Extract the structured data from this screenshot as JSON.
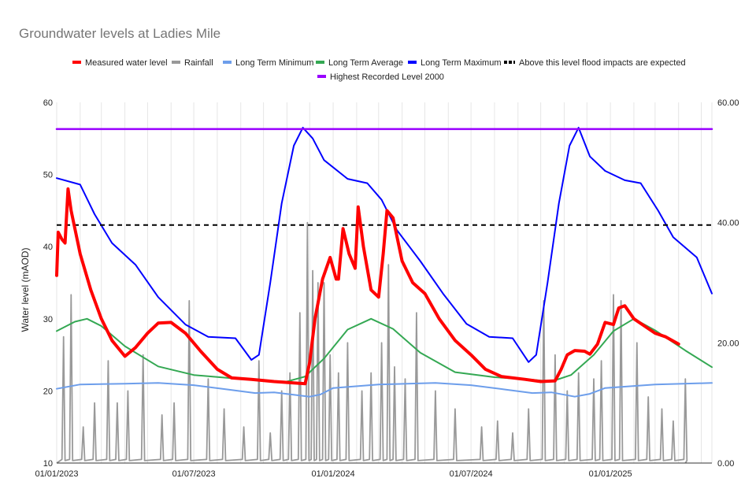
{
  "chart_data": {
    "type": "line",
    "title": "Groundwater levels at Ladies Mile",
    "ylabel": "Water level (mAOD)",
    "y2label": "",
    "ylim": [
      10,
      60
    ],
    "y2lim": [
      0,
      60
    ],
    "yticks": [
      "10",
      "20",
      "30",
      "40",
      "50",
      "60"
    ],
    "y2ticks": [
      "0.00",
      "20.00",
      "40.00",
      "60.00"
    ],
    "x_tick_labels": [
      "01/01/2023",
      "01/07/2023",
      "01/01/2024",
      "01/07/2024",
      "01/01/2025"
    ],
    "x_tick_dates": [
      "2023-01-01",
      "2023-07-01",
      "2024-01-01",
      "2024-07-01",
      "2025-01-01"
    ],
    "xlim": [
      "2023-01-01",
      "2025-05-15"
    ],
    "grid": "vertical",
    "legend_position": "top",
    "series": [
      {
        "name": "Measured water level",
        "color": "#ff0000",
        "axis": "left",
        "style": "solid",
        "width": 4,
        "points": [
          [
            "2023-01-01",
            36
          ],
          [
            "2023-01-03",
            42
          ],
          [
            "2023-01-08",
            41
          ],
          [
            "2023-01-12",
            40.5
          ],
          [
            "2023-01-16",
            48
          ],
          [
            "2023-01-20",
            45
          ],
          [
            "2023-02-01",
            39
          ],
          [
            "2023-02-15",
            34
          ],
          [
            "2023-03-01",
            30
          ],
          [
            "2023-03-15",
            27
          ],
          [
            "2023-04-01",
            24.8
          ],
          [
            "2023-04-15",
            26
          ],
          [
            "2023-05-01",
            28
          ],
          [
            "2023-05-15",
            29.4
          ],
          [
            "2023-06-01",
            29.5
          ],
          [
            "2023-06-20",
            28
          ],
          [
            "2023-07-10",
            25.5
          ],
          [
            "2023-08-01",
            23
          ],
          [
            "2023-08-20",
            21.8
          ],
          [
            "2023-09-15",
            21.6
          ],
          [
            "2023-10-15",
            21.3
          ],
          [
            "2023-11-10",
            21.1
          ],
          [
            "2023-11-25",
            21
          ],
          [
            "2023-12-01",
            24
          ],
          [
            "2023-12-08",
            30
          ],
          [
            "2023-12-18",
            35.5
          ],
          [
            "2023-12-28",
            38.5
          ],
          [
            "2024-01-05",
            35.5
          ],
          [
            "2024-01-08",
            35.5
          ],
          [
            "2024-01-14",
            42.5
          ],
          [
            "2024-01-22",
            39
          ],
          [
            "2024-01-30",
            37
          ],
          [
            "2024-02-03",
            45.5
          ],
          [
            "2024-02-10",
            40
          ],
          [
            "2024-02-20",
            34
          ],
          [
            "2024-03-01",
            33
          ],
          [
            "2024-03-07",
            39
          ],
          [
            "2024-03-12",
            45
          ],
          [
            "2024-03-20",
            44
          ],
          [
            "2024-04-01",
            38
          ],
          [
            "2024-04-15",
            35
          ],
          [
            "2024-05-01",
            33.5
          ],
          [
            "2024-05-20",
            30
          ],
          [
            "2024-06-10",
            27
          ],
          [
            "2024-07-01",
            25
          ],
          [
            "2024-07-20",
            23
          ],
          [
            "2024-08-10",
            22
          ],
          [
            "2024-09-10",
            21.6
          ],
          [
            "2024-10-01",
            21.3
          ],
          [
            "2024-10-20",
            21.4
          ],
          [
            "2024-10-28",
            23
          ],
          [
            "2024-11-05",
            25
          ],
          [
            "2024-11-15",
            25.6
          ],
          [
            "2024-11-28",
            25.5
          ],
          [
            "2024-12-05",
            25.1
          ],
          [
            "2024-12-15",
            26.5
          ],
          [
            "2024-12-25",
            29.5
          ],
          [
            "2025-01-05",
            29.2
          ],
          [
            "2025-01-12",
            31.5
          ],
          [
            "2025-01-20",
            31.8
          ],
          [
            "2025-02-01",
            30
          ],
          [
            "2025-02-15",
            29
          ],
          [
            "2025-03-01",
            28
          ],
          [
            "2025-03-15",
            27.5
          ],
          [
            "2025-04-01",
            26.5
          ]
        ]
      },
      {
        "name": "Rainfall",
        "color": "#999999",
        "axis": "right",
        "style": "solid",
        "width": 1.8,
        "peaks": [
          [
            "2023-01-10",
            21
          ],
          [
            "2023-01-20",
            28
          ],
          [
            "2023-02-05",
            6
          ],
          [
            "2023-02-20",
            10
          ],
          [
            "2023-03-10",
            17
          ],
          [
            "2023-03-22",
            10
          ],
          [
            "2023-04-05",
            12
          ],
          [
            "2023-04-25",
            18
          ],
          [
            "2023-05-20",
            8
          ],
          [
            "2023-06-05",
            10
          ],
          [
            "2023-06-25",
            27
          ],
          [
            "2023-07-20",
            14
          ],
          [
            "2023-08-10",
            9
          ],
          [
            "2023-09-05",
            6
          ],
          [
            "2023-09-25",
            17
          ],
          [
            "2023-10-10",
            5
          ],
          [
            "2023-10-25",
            12
          ],
          [
            "2023-11-05",
            15
          ],
          [
            "2023-11-18",
            25
          ],
          [
            "2023-11-28",
            40
          ],
          [
            "2023-12-05",
            32
          ],
          [
            "2023-12-12",
            30
          ],
          [
            "2023-12-20",
            30
          ],
          [
            "2023-12-28",
            18
          ],
          [
            "2024-01-08",
            15
          ],
          [
            "2024-01-20",
            20
          ],
          [
            "2024-02-08",
            12
          ],
          [
            "2024-02-20",
            15
          ],
          [
            "2024-03-05",
            20
          ],
          [
            "2024-03-14",
            33
          ],
          [
            "2024-03-22",
            16
          ],
          [
            "2024-04-05",
            14
          ],
          [
            "2024-04-20",
            25
          ],
          [
            "2024-05-15",
            12
          ],
          [
            "2024-06-10",
            9
          ],
          [
            "2024-07-15",
            6
          ],
          [
            "2024-08-05",
            7
          ],
          [
            "2024-08-25",
            5
          ],
          [
            "2024-09-15",
            9
          ],
          [
            "2024-10-05",
            27
          ],
          [
            "2024-10-20",
            18
          ],
          [
            "2024-11-05",
            12
          ],
          [
            "2024-11-20",
            15
          ],
          [
            "2024-12-10",
            14
          ],
          [
            "2024-12-20",
            17
          ],
          [
            "2025-01-05",
            28
          ],
          [
            "2025-01-15",
            27
          ],
          [
            "2025-02-05",
            20
          ],
          [
            "2025-02-20",
            11
          ],
          [
            "2025-03-10",
            9
          ],
          [
            "2025-03-25",
            7
          ],
          [
            "2025-04-10",
            14
          ]
        ]
      },
      {
        "name": "Long Term Minimum",
        "color": "#6d9eeb",
        "axis": "left",
        "style": "solid",
        "width": 2,
        "points": [
          [
            "2023-01-01",
            20.3
          ],
          [
            "2023-02-01",
            20.9
          ],
          [
            "2023-04-01",
            21
          ],
          [
            "2023-05-15",
            21.1
          ],
          [
            "2023-07-01",
            20.8
          ],
          [
            "2023-08-15",
            20.2
          ],
          [
            "2023-09-20",
            19.7
          ],
          [
            "2023-10-15",
            19.8
          ],
          [
            "2023-12-01",
            19.2
          ],
          [
            "2023-12-15",
            19.5
          ],
          [
            "2024-01-01",
            20.4
          ],
          [
            "2024-03-01",
            20.9
          ],
          [
            "2024-05-15",
            21.1
          ],
          [
            "2024-07-01",
            20.8
          ],
          [
            "2024-08-15",
            20.2
          ],
          [
            "2024-09-20",
            19.7
          ],
          [
            "2024-10-15",
            19.8
          ],
          [
            "2024-11-15",
            19.2
          ],
          [
            "2024-12-05",
            19.6
          ],
          [
            "2024-12-25",
            20.4
          ],
          [
            "2025-03-01",
            20.9
          ],
          [
            "2025-05-15",
            21.1
          ]
        ]
      },
      {
        "name": "Long Term Average",
        "color": "#34a853",
        "axis": "left",
        "style": "solid",
        "width": 2,
        "points": [
          [
            "2023-01-01",
            28.3
          ],
          [
            "2023-01-25",
            29.6
          ],
          [
            "2023-02-10",
            30
          ],
          [
            "2023-03-01",
            29
          ],
          [
            "2023-04-01",
            26.2
          ],
          [
            "2023-05-15",
            23.4
          ],
          [
            "2023-07-01",
            22.2
          ],
          [
            "2023-08-15",
            21.8
          ],
          [
            "2023-10-01",
            21.4
          ],
          [
            "2023-11-01",
            21.3
          ],
          [
            "2023-11-25",
            22
          ],
          [
            "2023-12-20",
            24.5
          ],
          [
            "2024-01-20",
            28.5
          ],
          [
            "2024-02-20",
            30
          ],
          [
            "2024-03-20",
            28.6
          ],
          [
            "2024-04-25",
            25.3
          ],
          [
            "2024-06-10",
            22.6
          ],
          [
            "2024-08-01",
            21.9
          ],
          [
            "2024-09-15",
            21.6
          ],
          [
            "2024-10-15",
            21.3
          ],
          [
            "2024-11-10",
            22.2
          ],
          [
            "2024-12-10",
            25
          ],
          [
            "2025-01-05",
            28.3
          ],
          [
            "2025-02-01",
            30
          ],
          [
            "2025-03-01",
            28.4
          ],
          [
            "2025-04-10",
            25.6
          ],
          [
            "2025-05-15",
            23.3
          ]
        ]
      },
      {
        "name": "Long Term Maximum",
        "color": "#0000ff",
        "axis": "left",
        "style": "solid",
        "width": 2,
        "points": [
          [
            "2023-01-01",
            49.5
          ],
          [
            "2023-02-01",
            48.6
          ],
          [
            "2023-02-20",
            44.5
          ],
          [
            "2023-03-15",
            40.5
          ],
          [
            "2023-04-15",
            37.5
          ],
          [
            "2023-05-15",
            33
          ],
          [
            "2023-06-20",
            29.2
          ],
          [
            "2023-07-20",
            27.5
          ],
          [
            "2023-08-25",
            27.3
          ],
          [
            "2023-09-15",
            24.3
          ],
          [
            "2023-09-25",
            25
          ],
          [
            "2023-10-10",
            35
          ],
          [
            "2023-10-25",
            46
          ],
          [
            "2023-11-10",
            54
          ],
          [
            "2023-11-22",
            56.5
          ],
          [
            "2023-12-05",
            55
          ],
          [
            "2023-12-20",
            52
          ],
          [
            "2024-01-20",
            49.4
          ],
          [
            "2024-02-15",
            48.8
          ],
          [
            "2024-03-05",
            46.5
          ],
          [
            "2024-03-25",
            42.3
          ],
          [
            "2024-04-25",
            38
          ],
          [
            "2024-05-25",
            33.5
          ],
          [
            "2024-06-25",
            29.3
          ],
          [
            "2024-07-25",
            27.5
          ],
          [
            "2024-08-25",
            27.3
          ],
          [
            "2024-09-15",
            24
          ],
          [
            "2024-09-25",
            25
          ],
          [
            "2024-10-10",
            35
          ],
          [
            "2024-10-25",
            46
          ],
          [
            "2024-11-08",
            54
          ],
          [
            "2024-11-20",
            56.5
          ],
          [
            "2024-12-05",
            52.5
          ],
          [
            "2024-12-25",
            50.5
          ],
          [
            "2025-01-20",
            49.2
          ],
          [
            "2025-02-10",
            48.8
          ],
          [
            "2025-03-05",
            45
          ],
          [
            "2025-03-25",
            41.3
          ],
          [
            "2025-04-25",
            38.5
          ],
          [
            "2025-05-15",
            33.5
          ]
        ]
      },
      {
        "name": "Above this level flood impacts are expected",
        "color": "#000000",
        "axis": "left",
        "style": "dashed",
        "width": 2,
        "points": [
          [
            "2023-01-01",
            43
          ],
          [
            "2025-05-15",
            43
          ]
        ]
      },
      {
        "name": "Highest Recorded Level 2000",
        "color": "#9900ff",
        "axis": "left",
        "style": "solid",
        "width": 2.5,
        "points": [
          [
            "2023-01-01",
            56.3
          ],
          [
            "2025-05-15",
            56.3
          ]
        ]
      }
    ]
  }
}
